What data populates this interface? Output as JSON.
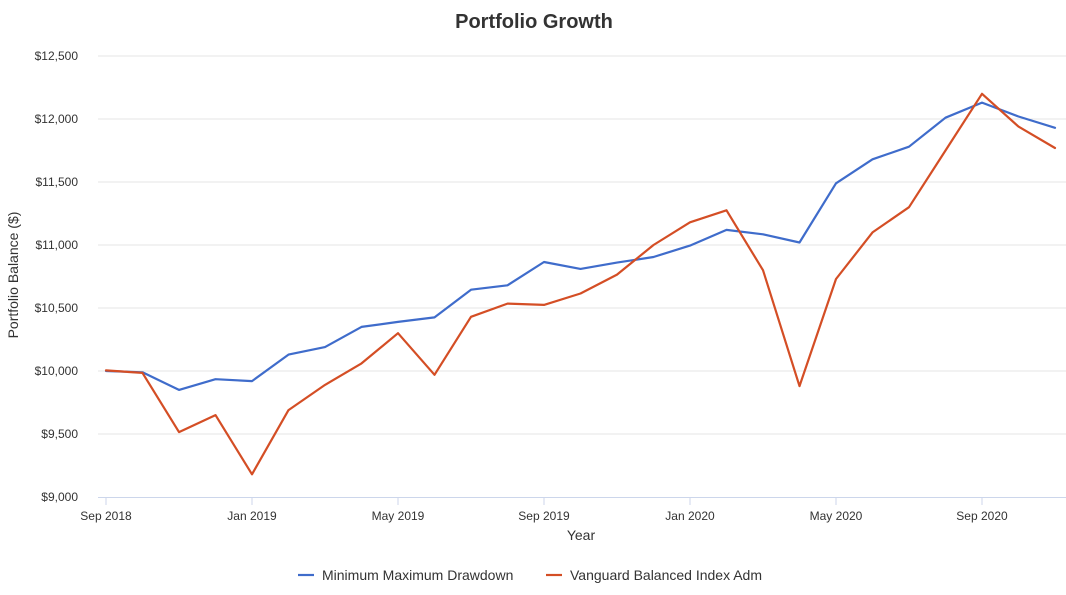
{
  "chart_data": {
    "type": "line",
    "title": "Portfolio Growth",
    "xlabel": "Year",
    "ylabel": "Portfolio Balance ($)",
    "ylim": [
      9000,
      12500
    ],
    "y_ticks": [
      9000,
      9500,
      10000,
      10500,
      11000,
      11500,
      12000,
      12500
    ],
    "y_tick_labels": [
      "$9,000",
      "$9,500",
      "$10,000",
      "$10,500",
      "$11,000",
      "$11,500",
      "$12,000",
      "$12,500"
    ],
    "x_tick_labels": [
      "Sep 2018",
      "Jan 2019",
      "May 2019",
      "Sep 2019",
      "Jan 2020",
      "May 2020",
      "Sep 2020"
    ],
    "x_tick_positions": [
      "2018-09",
      "2019-01",
      "2019-05",
      "2019-09",
      "2020-01",
      "2020-05",
      "2020-09"
    ],
    "x": [
      "2018-09",
      "2018-10",
      "2018-11",
      "2018-12",
      "2019-01",
      "2019-02",
      "2019-03",
      "2019-04",
      "2019-05",
      "2019-06",
      "2019-07",
      "2019-08",
      "2019-09",
      "2019-10",
      "2019-11",
      "2019-12",
      "2020-01",
      "2020-02",
      "2020-03",
      "2020-04",
      "2020-05",
      "2020-06",
      "2020-07",
      "2020-08",
      "2020-09",
      "2020-10",
      "2020-11"
    ],
    "grid": true,
    "legend_position": "bottom",
    "series": [
      {
        "name": "Minimum Maximum Drawdown",
        "color": "#3f6ccb",
        "values": [
          10000,
          9990,
          9850,
          9935,
          9920,
          10130,
          10190,
          10350,
          10390,
          10425,
          10645,
          10680,
          10865,
          10810,
          10860,
          10905,
          10995,
          11120,
          11085,
          11020,
          11490,
          11680,
          11780,
          12010,
          12130,
          12020,
          11930
        ]
      },
      {
        "name": "Vanguard Balanced Index Adm",
        "color": "#d44e25",
        "values": [
          10005,
          9985,
          9515,
          9650,
          9180,
          9690,
          9890,
          10060,
          10300,
          9970,
          10430,
          10535,
          10525,
          10615,
          10765,
          11000,
          11180,
          11275,
          10800,
          9880,
          10730,
          11100,
          11300,
          11750,
          12200,
          11940,
          11770
        ]
      }
    ]
  }
}
